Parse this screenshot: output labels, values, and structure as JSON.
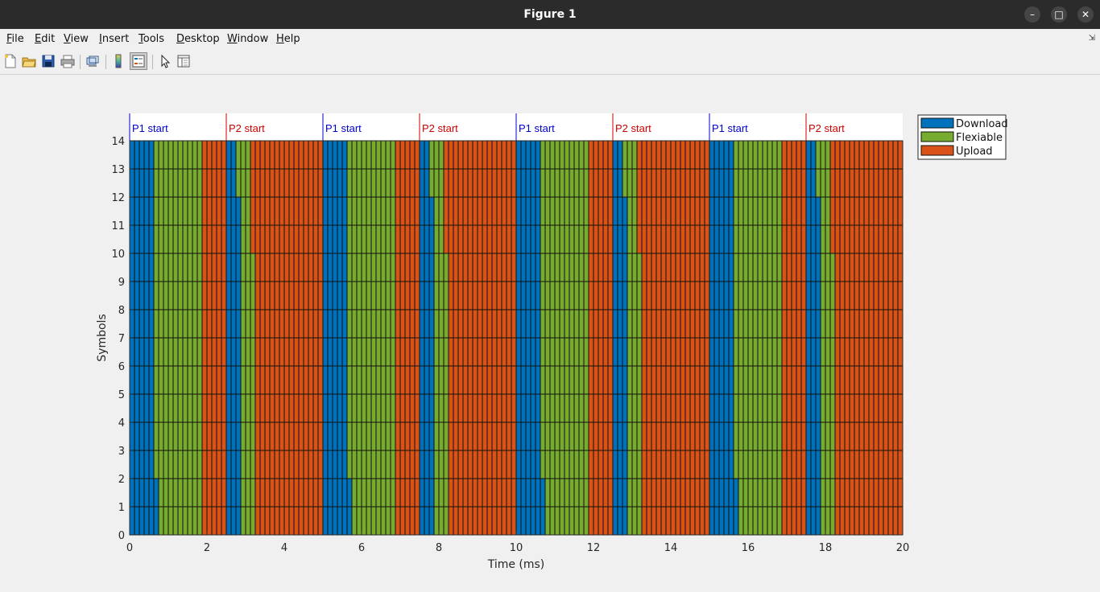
{
  "window": {
    "title": "Figure 1",
    "controls": [
      "minimize-icon",
      "maximize-icon",
      "close-icon"
    ]
  },
  "menu": [
    {
      "label": "File",
      "key": "F"
    },
    {
      "label": "Edit",
      "key": "E"
    },
    {
      "label": "View",
      "key": "V"
    },
    {
      "label": "Insert",
      "key": "I"
    },
    {
      "label": "Tools",
      "key": "T"
    },
    {
      "label": "Desktop",
      "key": "D"
    },
    {
      "label": "Window",
      "key": "W"
    },
    {
      "label": "Help",
      "key": "H"
    }
  ],
  "toolbar": [
    "new-figure-icon",
    "open-file-icon",
    "save-icon",
    "print-icon",
    "link-plot-icon",
    "colorbar-icon",
    "legend-icon",
    "pointer-icon",
    "property-inspector-icon"
  ],
  "chart_data": {
    "type": "heatmap",
    "title": "",
    "xlabel": "Time (ms)",
    "ylabel": "Symbols",
    "xlim": [
      0,
      20
    ],
    "ylim": [
      0,
      14
    ],
    "xticks": [
      0,
      2,
      4,
      6,
      8,
      10,
      12,
      14,
      16,
      18,
      20
    ],
    "yticks": [
      0,
      1,
      2,
      3,
      4,
      5,
      6,
      7,
      8,
      9,
      10,
      11,
      12,
      13,
      14
    ],
    "grid": true,
    "slot_duration_ms": 0.125,
    "legend": {
      "placement": "outside-top-right",
      "entries": [
        {
          "name": "Download",
          "color": "#0072bd"
        },
        {
          "name": "Flexiable",
          "color": "#77ac30"
        },
        {
          "name": "Upload",
          "color": "#d95319"
        }
      ]
    },
    "period_markers": [
      {
        "label": "P1 start",
        "x": 0,
        "color": "#0000cc"
      },
      {
        "label": "P2 start",
        "x": 2.5,
        "color": "#cc0000"
      },
      {
        "label": "P1 start",
        "x": 5,
        "color": "#0000cc"
      },
      {
        "label": "P2 start",
        "x": 7.5,
        "color": "#cc0000"
      },
      {
        "label": "P1 start",
        "x": 10,
        "color": "#0000cc"
      },
      {
        "label": "P2 start",
        "x": 12.5,
        "color": "#cc0000"
      },
      {
        "label": "P1 start",
        "x": 15,
        "color": "#0000cc"
      },
      {
        "label": "P2 start",
        "x": 17.5,
        "color": "#cc0000"
      }
    ],
    "patterns": {
      "P1": {
        "period_ms": 2.5,
        "full_download_ms": 0.625,
        "partial_download_ms": 0.125,
        "partial_download_symbols": 2,
        "upload_ms": 0.625,
        "partial_upload_ms": 0,
        "partial_upload_symbols": 0
      },
      "P2": {
        "period_ms": 2.5,
        "full_download_ms": 0.25,
        "partial_download_ms": 0.125,
        "partial_download_symbols": 12,
        "upload_ms": 1.75,
        "partial_upload_ms": 0.125,
        "partial_upload_symbols": 10
      }
    }
  }
}
